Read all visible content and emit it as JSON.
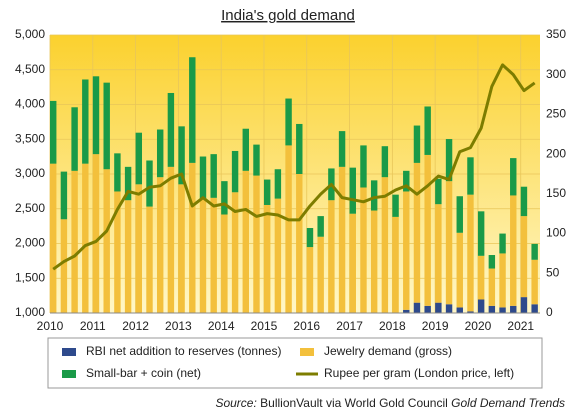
{
  "chart_data": {
    "type": "bar",
    "title": "India's gold demand",
    "source": [
      "Source:",
      "BullionVault via World Gold Council",
      "Gold Demand Trends"
    ],
    "x": [
      2010,
      2010.25,
      2010.5,
      2010.75,
      2011,
      2011.25,
      2011.5,
      2011.75,
      2012,
      2012.25,
      2012.5,
      2012.75,
      2013,
      2013.25,
      2013.5,
      2013.75,
      2014,
      2014.25,
      2014.5,
      2014.75,
      2015,
      2015.25,
      2015.5,
      2015.75,
      2016,
      2016.25,
      2016.5,
      2016.75,
      2017,
      2017.25,
      2017.5,
      2017.75,
      2018,
      2018.25,
      2018.5,
      2018.75,
      2019,
      2019.25,
      2019.5,
      2019.75,
      2020,
      2020.25,
      2020.5,
      2020.75,
      2021,
      2021.25
    ],
    "xlim": [
      2010,
      2021.45
    ],
    "xticks": [
      2010,
      2011,
      2012,
      2013,
      2014,
      2015,
      2016,
      2017,
      2018,
      2019,
      2020,
      2021
    ],
    "ylim": [
      1000,
      5000
    ],
    "yticks": [
      {
        "value": 1000,
        "label": "1,000"
      },
      {
        "value": 1500,
        "label": "1,500"
      },
      {
        "value": 2000,
        "label": "2,000"
      },
      {
        "value": 2500,
        "label": "2,500"
      },
      {
        "value": 3000,
        "label": "3,000"
      },
      {
        "value": 3500,
        "label": "3,500"
      },
      {
        "value": 4000,
        "label": "4,000"
      },
      {
        "value": 4500,
        "label": "4,500"
      },
      {
        "value": 5000,
        "label": "5,000"
      }
    ],
    "y2lim": [
      0,
      350
    ],
    "y2ticks": [
      0,
      50,
      100,
      150,
      200,
      250,
      300,
      350
    ],
    "grid": true,
    "legend": "bottom",
    "series": [
      {
        "name": "RBI net addition to reserves (tonnes)",
        "color": "#2e4a8c",
        "axis": "y2",
        "values": [
          0,
          0,
          0,
          0,
          0,
          0,
          0,
          0,
          0,
          0,
          0,
          0,
          0,
          0,
          0,
          0,
          0,
          0,
          0,
          0,
          0,
          0,
          0,
          0,
          0,
          0,
          0,
          0,
          0,
          0,
          0,
          0,
          0,
          4,
          13,
          9,
          13,
          11,
          7,
          2,
          17,
          9,
          7,
          9,
          20,
          11
        ]
      },
      {
        "name": "Jewelry demand (gross)",
        "color": "#f3c03c",
        "axis": "y2",
        "values": [
          188,
          118,
          179,
          188,
          200,
          181,
          153,
          142,
          162,
          134,
          171,
          184,
          162,
          189,
          144,
          145,
          124,
          152,
          179,
          173,
          136,
          144,
          211,
          175,
          83,
          96,
          142,
          184,
          125,
          158,
          129,
          171,
          121,
          149,
          176,
          190,
          124,
          155,
          94,
          147,
          55,
          47,
          68,
          139,
          102,
          56
        ]
      },
      {
        "name": "Small-bar + coin (net)",
        "color": "#1a9a48",
        "axis": "y2",
        "values": [
          79,
          60,
          80,
          106,
          98,
          109,
          48,
          42,
          65,
          58,
          60,
          93,
          73,
          133,
          53,
          55,
          42,
          52,
          53,
          39,
          32,
          37,
          59,
          63,
          24,
          26,
          40,
          45,
          58,
          53,
          38,
          39,
          28,
          26,
          47,
          61,
          32,
          53,
          46,
          47,
          56,
          17,
          25,
          47,
          37,
          20
        ]
      },
      {
        "name": "Rupee per gram (London price, left)",
        "color": "#7d7d00",
        "type": "line",
        "values": [
          1630,
          1740,
          1820,
          1970,
          2030,
          2180,
          2490,
          2750,
          2710,
          2810,
          2830,
          2940,
          3000,
          2540,
          2660,
          2540,
          2570,
          2460,
          2490,
          2390,
          2430,
          2410,
          2340,
          2340,
          2540,
          2710,
          2850,
          2660,
          2630,
          2600,
          2660,
          2680,
          2770,
          2830,
          2710,
          2830,
          2970,
          2920,
          3320,
          3380,
          3660,
          4260,
          4570,
          4430,
          4200,
          4310
        ]
      }
    ]
  }
}
